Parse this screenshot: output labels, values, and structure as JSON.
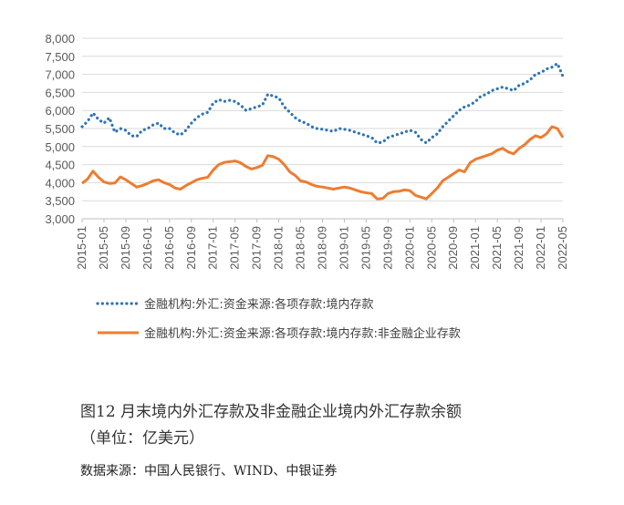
{
  "chart_data": {
    "type": "line",
    "title": "",
    "xlabel": "",
    "ylabel": "",
    "ylim": [
      3000,
      8000
    ],
    "y_ticks": [
      "3,000",
      "3,500",
      "4,000",
      "4,500",
      "5,000",
      "5,500",
      "6,000",
      "6,500",
      "7,000",
      "7,500",
      "8,000"
    ],
    "y_tick_values": [
      3000,
      3500,
      4000,
      4500,
      5000,
      5500,
      6000,
      6500,
      7000,
      7500,
      8000
    ],
    "x_ticks": [
      "2015-01",
      "2015-05",
      "2015-09",
      "2016-01",
      "2016-05",
      "2016-09",
      "2017-01",
      "2017-05",
      "2017-09",
      "2018-01",
      "2018-05",
      "2018-09",
      "2019-01",
      "2019-05",
      "2019-09",
      "2020-01",
      "2020-05",
      "2020-09",
      "2021-01",
      "2021-05",
      "2021-09",
      "2022-01",
      "2022-05"
    ],
    "grid": true,
    "legend_position": "bottom",
    "x": [
      "2015-01",
      "2015-02",
      "2015-03",
      "2015-04",
      "2015-05",
      "2015-06",
      "2015-07",
      "2015-08",
      "2015-09",
      "2015-10",
      "2015-11",
      "2015-12",
      "2016-01",
      "2016-02",
      "2016-03",
      "2016-04",
      "2016-05",
      "2016-06",
      "2016-07",
      "2016-08",
      "2016-09",
      "2016-10",
      "2016-11",
      "2016-12",
      "2017-01",
      "2017-02",
      "2017-03",
      "2017-04",
      "2017-05",
      "2017-06",
      "2017-07",
      "2017-08",
      "2017-09",
      "2017-10",
      "2017-11",
      "2017-12",
      "2018-01",
      "2018-02",
      "2018-03",
      "2018-04",
      "2018-05",
      "2018-06",
      "2018-07",
      "2018-08",
      "2018-09",
      "2018-10",
      "2018-11",
      "2018-12",
      "2019-01",
      "2019-02",
      "2019-03",
      "2019-04",
      "2019-05",
      "2019-06",
      "2019-07",
      "2019-08",
      "2019-09",
      "2019-10",
      "2019-11",
      "2019-12",
      "2020-01",
      "2020-02",
      "2020-03",
      "2020-04",
      "2020-05",
      "2020-06",
      "2020-07",
      "2020-08",
      "2020-09",
      "2020-10",
      "2020-11",
      "2020-12",
      "2021-01",
      "2021-02",
      "2021-03",
      "2021-04",
      "2021-05",
      "2021-06",
      "2021-07",
      "2021-08",
      "2021-09",
      "2021-10",
      "2021-11",
      "2021-12",
      "2022-01",
      "2022-02",
      "2022-03",
      "2022-04",
      "2022-05"
    ],
    "series": [
      {
        "name": "金融机构:外汇:资金来源:各项存款:境内存款",
        "style": "dotted",
        "color": "#2E75B6",
        "values": [
          5550,
          5700,
          5930,
          5750,
          5650,
          5800,
          5400,
          5500,
          5450,
          5300,
          5280,
          5450,
          5500,
          5600,
          5650,
          5500,
          5500,
          5380,
          5320,
          5450,
          5650,
          5800,
          5900,
          5950,
          6200,
          6300,
          6250,
          6280,
          6250,
          6150,
          6000,
          6050,
          6100,
          6150,
          6450,
          6400,
          6350,
          6100,
          5950,
          5800,
          5700,
          5650,
          5550,
          5500,
          5480,
          5450,
          5420,
          5500,
          5480,
          5450,
          5400,
          5350,
          5300,
          5250,
          5100,
          5120,
          5250,
          5300,
          5350,
          5400,
          5450,
          5400,
          5200,
          5100,
          5250,
          5350,
          5550,
          5700,
          5850,
          6000,
          6100,
          6150,
          6250,
          6400,
          6450,
          6550,
          6600,
          6650,
          6600,
          6550,
          6700,
          6750,
          6850,
          7000,
          7050,
          7150,
          7200,
          7300,
          6950
        ]
      },
      {
        "name": "金融机构:外汇:资金来源:各项存款:境内存款:非金融企业存款",
        "style": "solid",
        "color": "#ED7D31",
        "values": [
          3980,
          4100,
          4320,
          4150,
          4020,
          3980,
          3990,
          4160,
          4080,
          3980,
          3880,
          3920,
          3980,
          4050,
          4080,
          4000,
          3950,
          3850,
          3820,
          3920,
          4000,
          4080,
          4120,
          4150,
          4350,
          4500,
          4560,
          4580,
          4600,
          4550,
          4450,
          4380,
          4420,
          4480,
          4750,
          4720,
          4650,
          4500,
          4300,
          4200,
          4050,
          4020,
          3950,
          3900,
          3880,
          3850,
          3820,
          3850,
          3880,
          3850,
          3800,
          3750,
          3720,
          3700,
          3550,
          3560,
          3700,
          3750,
          3760,
          3800,
          3780,
          3650,
          3600,
          3550,
          3700,
          3850,
          4050,
          4150,
          4250,
          4350,
          4300,
          4550,
          4650,
          4700,
          4750,
          4800,
          4900,
          4950,
          4850,
          4800,
          4950,
          5050,
          5200,
          5300,
          5250,
          5350,
          5550,
          5500,
          5250
        ]
      }
    ]
  },
  "caption": {
    "title": "图12 月末境内外汇存款及非金融企业境内外汇存款余额",
    "unit": "（单位：亿美元）",
    "source": "数据来源：中国人民银行、WIND、中银证券"
  }
}
